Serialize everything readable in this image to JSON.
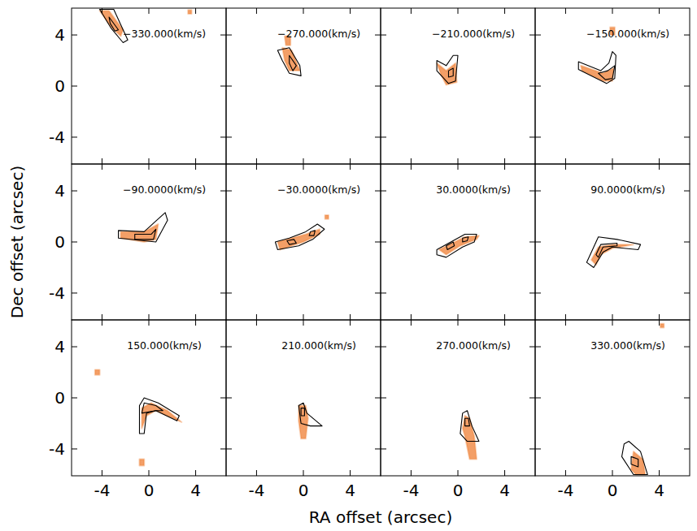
{
  "chart_data": {
    "type": "channel_map",
    "x_label": "RA offset (arcsec)",
    "y_label": "Dec offset (arcsec)",
    "xlim": [
      -6.6,
      6.6
    ],
    "ylim": [
      -6.1,
      6.1
    ],
    "xticks": [
      -4,
      0,
      4
    ],
    "yticks": [
      -4,
      0,
      4
    ],
    "color": "#ee7a2c",
    "panels": [
      {
        "title": "−330.000(km/s)",
        "emission": [
          {
            "x": [
              -4.2,
              -3.4,
              -2.2,
              -2.4,
              -3.2
            ],
            "y": [
              5.9,
              5.9,
              4.4,
              3.9,
              4.6
            ]
          },
          {
            "x": [
              3.35,
              3.65,
              3.65,
              3.35
            ],
            "y": [
              5.95,
              5.95,
              5.65,
              5.65
            ]
          }
        ],
        "contours": [
          {
            "x": [
              -4.2,
              -3,
              -1.8,
              -2.2,
              -3.2
            ],
            "y": [
              6,
              6,
              3.6,
              3.4,
              4.5
            ]
          },
          {
            "x": [
              -3.4,
              -2.6,
              -2.9,
              -3.3
            ],
            "y": [
              5.4,
              4.4,
              4.3,
              4.9
            ]
          }
        ]
      },
      {
        "title": "−270.000(km/s)",
        "emission": [
          {
            "x": [
              -1.8,
              -1.0,
              -0.3,
              -1.2,
              -1.6
            ],
            "y": [
              3.0,
              2.8,
              1.2,
              1.2,
              2.0
            ]
          },
          {
            "x": [
              -1.6,
              -1.1,
              -1.1,
              -1.5
            ],
            "y": [
              3.9,
              3.9,
              3.2,
              3.2
            ]
          }
        ],
        "contours": [
          {
            "x": [
              -2.2,
              -1.2,
              -0.3,
              -0.2,
              -1.2,
              -1.8
            ],
            "y": [
              2.8,
              3.0,
              1.6,
              0.8,
              1.0,
              2.0
            ]
          },
          {
            "x": [
              -1.2,
              -0.6,
              -0.9,
              -1.2
            ],
            "y": [
              2.4,
              1.6,
              1.2,
              1.8
            ]
          }
        ]
      },
      {
        "title": "−210.000(km/s)",
        "emission": [
          {
            "x": [
              -1.8,
              -1.0,
              -0.2,
              -0.1,
              -1.0,
              -1.4
            ],
            "y": [
              1.8,
              1.2,
              1.8,
              0.3,
              0.1,
              0.8
            ]
          }
        ],
        "contours": [
          {
            "x": [
              -1.8,
              -1.0,
              -0.4,
              0,
              -0.2,
              -0.8,
              -1.8
            ],
            "y": [
              2.0,
              1.6,
              2.4,
              2.4,
              0.4,
              0.2,
              1.2
            ]
          },
          {
            "x": [
              -0.8,
              -0.4,
              -0.4,
              -0.8
            ],
            "y": [
              1.2,
              1.4,
              0.8,
              0.7
            ]
          }
        ]
      },
      {
        "title": "−150.000(km/s)",
        "emission": [
          {
            "x": [
              -2.7,
              -0.8,
              0.1,
              0.0,
              -0.8,
              -2.6
            ],
            "y": [
              1.6,
              1.0,
              1.4,
              0.4,
              0.4,
              1.2
            ]
          },
          {
            "x": [
              -0.2,
              0.2,
              0.2,
              -0.2
            ],
            "y": [
              4.6,
              4.6,
              4.0,
              4.0
            ]
          }
        ],
        "contours": [
          {
            "x": [
              -2.9,
              -1.0,
              -0.3,
              0.0,
              0.3,
              0.2,
              -0.5,
              -2.9
            ],
            "y": [
              1.9,
              1.2,
              1.8,
              2.7,
              2.4,
              0.6,
              0.2,
              1.3
            ]
          },
          {
            "x": [
              -1.2,
              -0.4,
              0.2,
              0.0,
              -0.6
            ],
            "y": [
              1.0,
              1.2,
              1.6,
              0.6,
              0.5
            ]
          }
        ]
      },
      {
        "title": "−90.0000(km/s)",
        "emission": [
          {
            "x": [
              -2.4,
              -0.4,
              0.8,
              0.6,
              -0.4,
              -2.4
            ],
            "y": [
              0.8,
              0.8,
              1.4,
              0.2,
              0,
              0.3
            ]
          }
        ],
        "contours": [
          {
            "x": [
              -2.6,
              -0.4,
              0.8,
              1.4,
              1.6,
              0.6,
              -2.6
            ],
            "y": [
              0.9,
              0.8,
              1.8,
              2.3,
              1.7,
              0.0,
              0.3
            ]
          },
          {
            "x": [
              -1.2,
              0.2,
              0.6,
              0.4,
              -1.2
            ],
            "y": [
              0.6,
              0.6,
              1.0,
              0.2,
              0.2
            ]
          }
        ]
      },
      {
        "title": "−30.0000(km/s)",
        "emission": [
          {
            "x": [
              -2.2,
              0.2,
              1.4,
              1.4,
              0,
              -2.0
            ],
            "y": [
              0,
              0.6,
              1.0,
              0.6,
              0,
              -0.6
            ]
          },
          {
            "x": [
              1.85,
              2.15,
              2.15,
              1.85
            ],
            "y": [
              2.1,
              2.1,
              1.8,
              1.8
            ]
          }
        ],
        "contours": [
          {
            "x": [
              -2.4,
              -1.2,
              0.2,
              1.2,
              1.8,
              0.8,
              -0.4,
              -2.2
            ],
            "y": [
              0,
              0.3,
              0.8,
              1.4,
              1.0,
              0.2,
              -0.3,
              -0.6
            ]
          },
          {
            "x": [
              -1.4,
              -0.8,
              -0.6,
              -1.2
            ],
            "y": [
              0.1,
              0.2,
              -0.1,
              -0.2
            ]
          },
          {
            "x": [
              0.6,
              1.0,
              0.9,
              0.5
            ],
            "y": [
              0.8,
              0.9,
              0.5,
              0.5
            ]
          }
        ]
      },
      {
        "title": "30.0000(km/s)",
        "emission": [
          {
            "x": [
              -1.6,
              0.6,
              1.8,
              1.6,
              0.2,
              -1.0
            ],
            "y": [
              -0.6,
              0.4,
              0.5,
              0.2,
              -0.3,
              -1.0
            ]
          }
        ],
        "contours": [
          {
            "x": [
              -1.8,
              -0.6,
              0.6,
              1.6,
              1.4,
              0.4,
              -1.0,
              -1.8
            ],
            "y": [
              -0.6,
              0,
              0.6,
              0.6,
              0,
              -0.4,
              -1.2,
              -1.0
            ]
          },
          {
            "x": [
              -1.0,
              -0.4,
              -0.3,
              -0.9
            ],
            "y": [
              -0.3,
              0,
              -0.3,
              -0.6
            ]
          },
          {
            "x": [
              0.4,
              0.9,
              0.8,
              0.4
            ],
            "y": [
              0.3,
              0.4,
              0.1,
              0
            ]
          }
        ]
      },
      {
        "title": "90.0000(km/s)",
        "emission": [
          {
            "x": [
              -1.8,
              -1.2,
              0,
              1.8,
              0,
              -1.0,
              -1.4
            ],
            "y": [
              -1.4,
              -0.4,
              -0.2,
              -0.2,
              -0.5,
              -1.0,
              -1.8
            ]
          }
        ],
        "contours": [
          {
            "x": [
              -2.2,
              -1.2,
              0.4,
              2.4,
              2.2,
              0,
              -0.8,
              -1.6
            ],
            "y": [
              -1.6,
              0.4,
              0.2,
              -0.2,
              -0.6,
              -0.4,
              -0.8,
              -2.0
            ]
          },
          {
            "x": [
              -1.4,
              -1.0,
              0.4,
              0.4,
              -0.8,
              -1.2
            ],
            "y": [
              -1.0,
              -0.2,
              -0.1,
              -0.3,
              -0.4,
              -1.2
            ]
          }
        ]
      },
      {
        "title": "150.000(km/s)",
        "emission": [
          {
            "x": [
              -0.6,
              -0.6,
              0.2,
              1.6,
              2.8,
              0.6,
              -0.2
            ],
            "y": [
              -2.4,
              -0.8,
              -0.4,
              -1.0,
              -1.9,
              -1.0,
              -1.4
            ]
          },
          {
            "x": [
              -4.6,
              -4.2,
              -4.2,
              -4.6
            ],
            "y": [
              2.2,
              2.2,
              1.8,
              1.8
            ]
          },
          {
            "x": [
              -0.8,
              -0.4,
              -0.4,
              -0.8
            ],
            "y": [
              -4.8,
              -4.8,
              -5.3,
              -5.3
            ]
          }
        ],
        "contours": [
          {
            "x": [
              -0.8,
              -0.8,
              -0.4,
              0.8,
              2.6,
              2.4,
              0.6,
              -0.2,
              -0.4
            ],
            "y": [
              -2.8,
              -0.6,
              0,
              -0.4,
              -1.4,
              -1.8,
              -1.0,
              -1.2,
              -2.8
            ]
          },
          {
            "x": [
              -0.6,
              -0.4,
              0.6,
              1.2,
              0.6
            ],
            "y": [
              -1.2,
              -0.4,
              -0.6,
              -1.0,
              -1.0
            ]
          }
        ]
      },
      {
        "title": "210.000(km/s)",
        "emission": [
          {
            "x": [
              -0.4,
              0.2,
              0.4,
              0.2,
              -0.2,
              -0.4
            ],
            "y": [
              -0.6,
              -0.6,
              -1.6,
              -3.2,
              -3.2,
              -1.8
            ]
          }
        ],
        "contours": [
          {
            "x": [
              -0.2,
              -0.4,
              0,
              0.3,
              1.6,
              0.6
            ],
            "y": [
              -2.0,
              -0.6,
              -0.4,
              -1.2,
              -2.2,
              -2.2
            ]
          },
          {
            "x": [
              -0.2,
              -0.2,
              0.1,
              0.1
            ],
            "y": [
              -1.4,
              -0.8,
              -0.8,
              -1.4
            ]
          }
        ]
      },
      {
        "title": "270.000(km/s)",
        "emission": [
          {
            "x": [
              0.4,
              0.6,
              1.0,
              1.4,
              1.6,
              1.0,
              0.6
            ],
            "y": [
              -2.4,
              -1.4,
              -1.6,
              -3.0,
              -4.8,
              -4.8,
              -3.0
            ]
          }
        ],
        "contours": [
          {
            "x": [
              0.2,
              0.4,
              0.8,
              1.2,
              1.8,
              0.8
            ],
            "y": [
              -2.8,
              -1.2,
              -1.0,
              -2.2,
              -3.4,
              -3.4
            ]
          },
          {
            "x": [
              0.6,
              0.6,
              0.9,
              1.0
            ],
            "y": [
              -2.2,
              -1.6,
              -1.6,
              -2.2
            ]
          }
        ]
      },
      {
        "title": "330.000(km/s)",
        "emission": [
          {
            "x": [
              1.8,
              1.6,
              2.0,
              2.8,
              2.6
            ],
            "y": [
              -4.2,
              -5.6,
              -6,
              -6,
              -4.8
            ]
          },
          {
            "x": [
              4.1,
              4.4,
              4.4,
              4.1
            ],
            "y": [
              5.8,
              5.8,
              5.5,
              5.5
            ]
          }
        ],
        "contours": [
          {
            "x": [
              1.0,
              0.8,
              1.8,
              3.0,
              2.4,
              1.4
            ],
            "y": [
              -3.6,
              -4.6,
              -6,
              -6,
              -4.2,
              -3.4
            ]
          },
          {
            "x": [
              1.6,
              1.6,
              2.2,
              2.2
            ],
            "y": [
              -4.6,
              -5.2,
              -5.4,
              -4.8
            ]
          }
        ]
      }
    ]
  }
}
